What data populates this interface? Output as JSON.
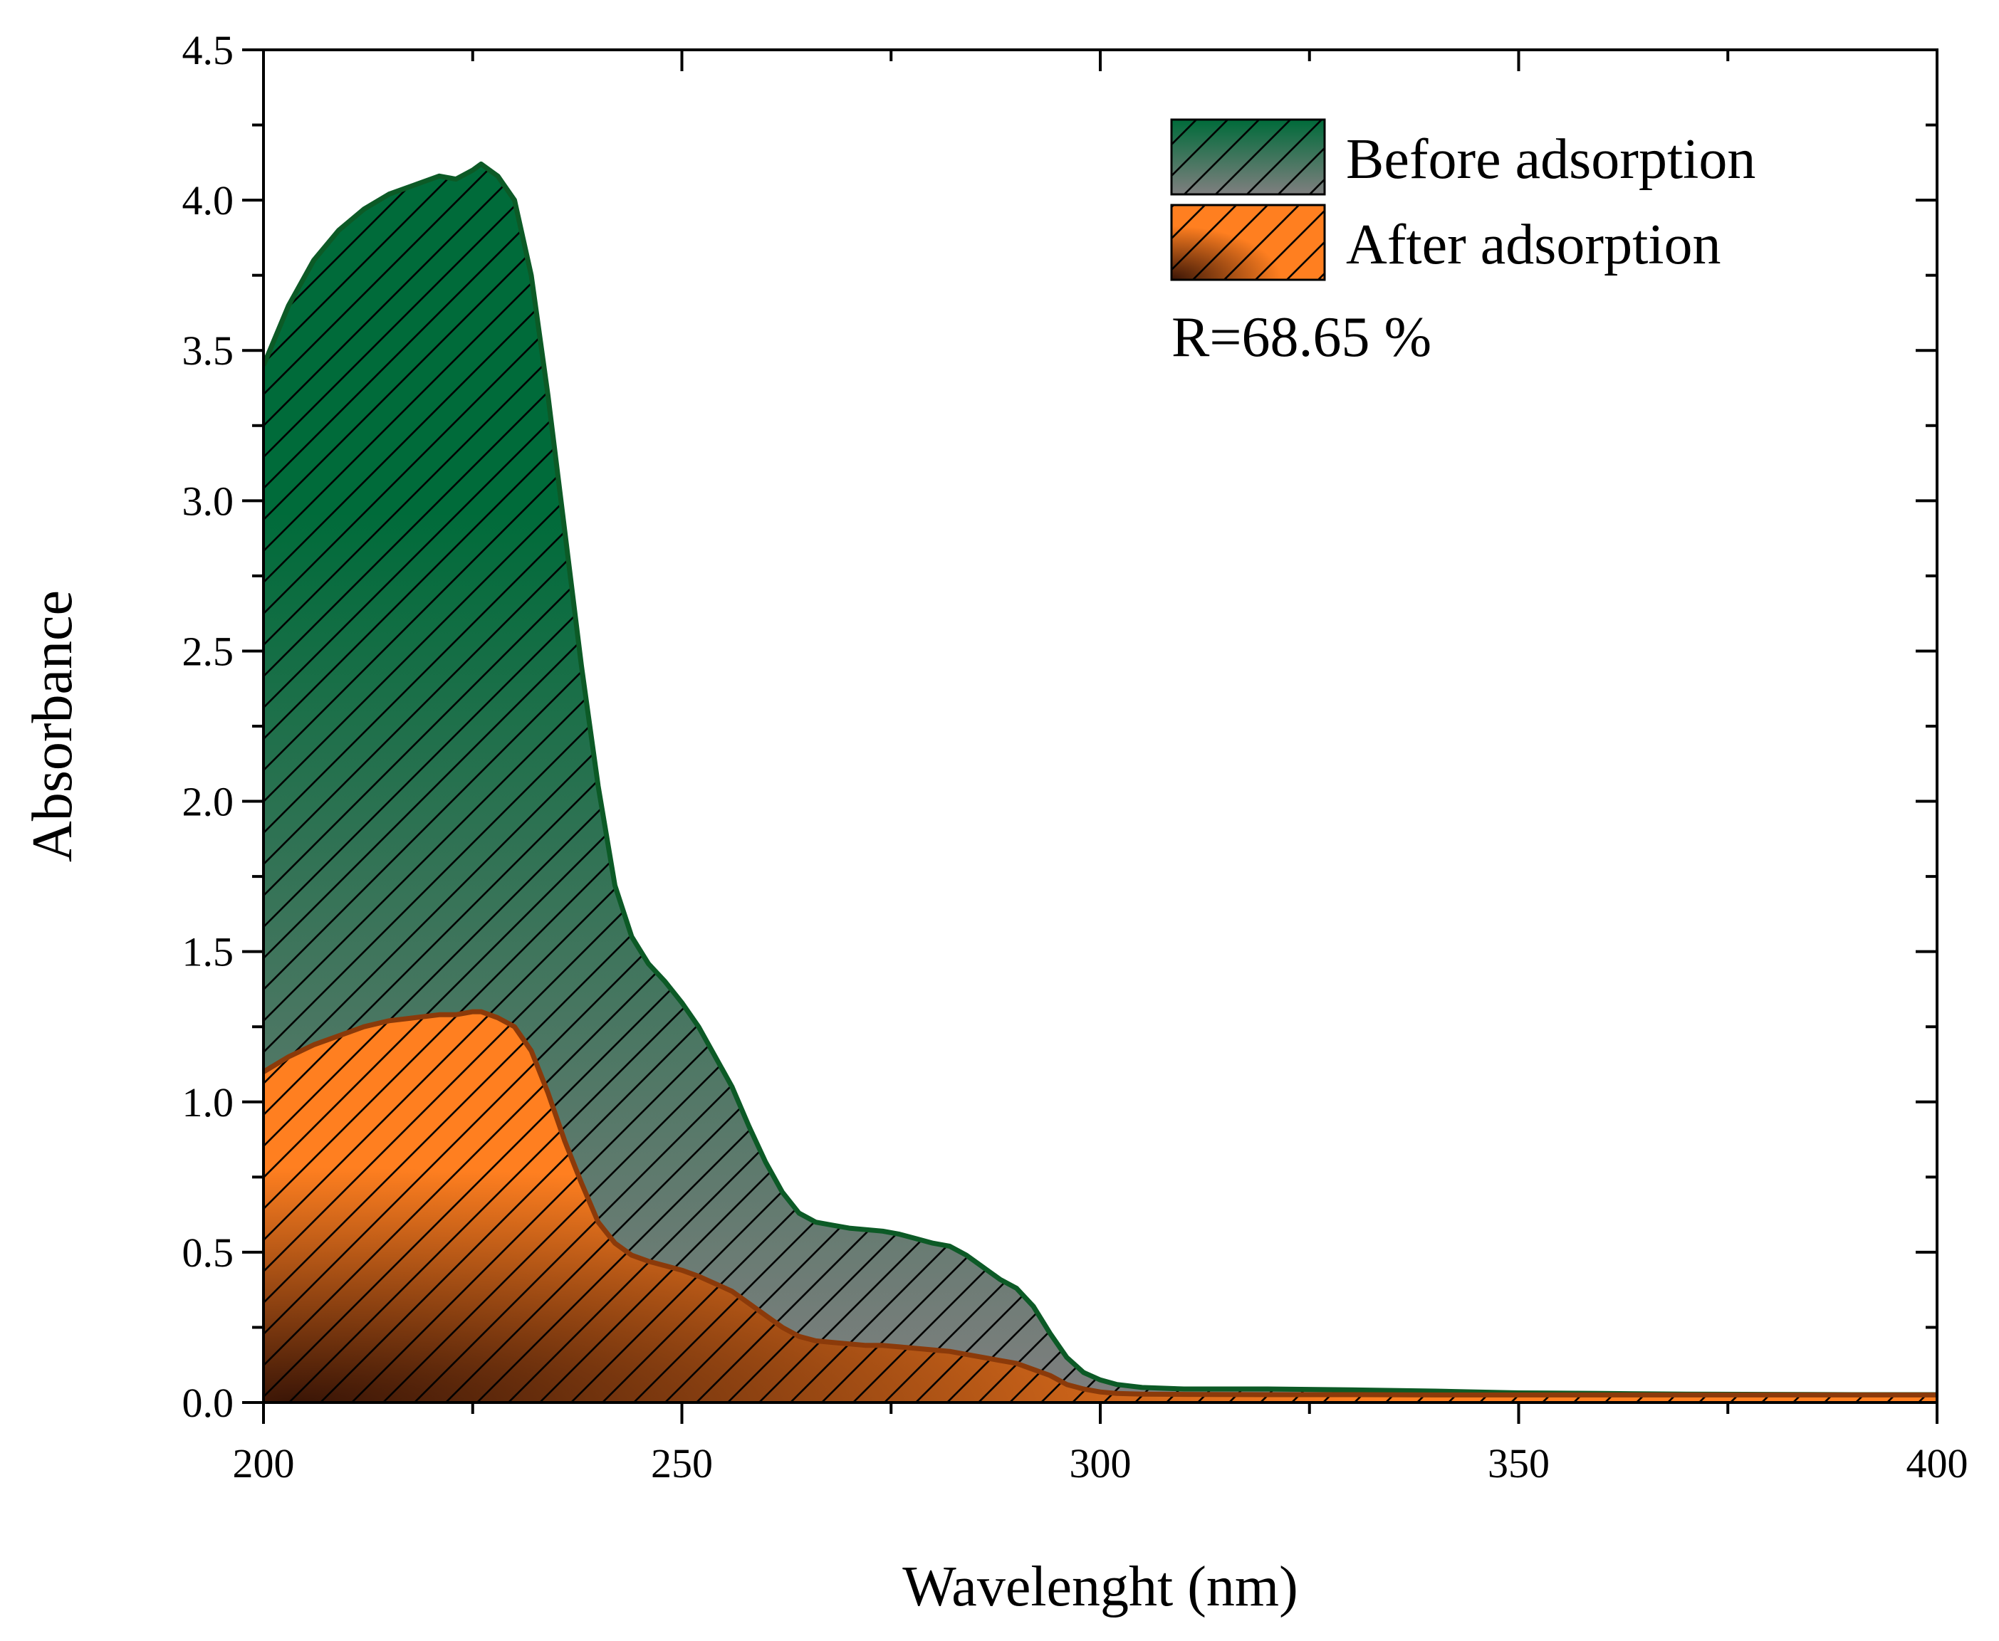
{
  "chart_data": {
    "type": "area",
    "title": "",
    "xlabel": "Wavelenght (nm)",
    "ylabel": "Absorbance",
    "xlim": [
      200,
      400
    ],
    "ylim": [
      0,
      4.5
    ],
    "xticks": [
      200,
      250,
      300,
      350,
      400
    ],
    "xtick_labels": [
      "200",
      "250",
      "300",
      "350",
      "400"
    ],
    "yticks": [
      0,
      0.5,
      1.0,
      1.5,
      2.0,
      2.5,
      3.0,
      3.5,
      4.0,
      4.5
    ],
    "ytick_labels": [
      "0.0",
      "0.5",
      "1.0",
      "1.5",
      "2.0",
      "2.5",
      "3.0",
      "3.5",
      "4.0",
      "4.5"
    ],
    "legend_position": "top-right",
    "annotation": "R=68.65 %",
    "series": [
      {
        "name": "Before adsorption",
        "line_color": "#0c5a26",
        "fill_top": "#006b3a",
        "fill_bottom": "#7f7f7f",
        "x": [
          200,
          203,
          206,
          209,
          212,
          215,
          218,
          221,
          223,
          225,
          226,
          228,
          230,
          232,
          234,
          236,
          238,
          240,
          242,
          244,
          246,
          248,
          250,
          252,
          254,
          256,
          258,
          260,
          262,
          264,
          266,
          268,
          270,
          272,
          274,
          276,
          278,
          280,
          282,
          284,
          286,
          288,
          290,
          292,
          294,
          296,
          298,
          300,
          302,
          305,
          310,
          320,
          330,
          340,
          350,
          360,
          370,
          380,
          390,
          400
        ],
        "y": [
          3.45,
          3.65,
          3.8,
          3.9,
          3.97,
          4.02,
          4.05,
          4.08,
          4.07,
          4.1,
          4.12,
          4.08,
          4.0,
          3.75,
          3.35,
          2.9,
          2.45,
          2.05,
          1.72,
          1.55,
          1.46,
          1.4,
          1.33,
          1.25,
          1.15,
          1.05,
          0.92,
          0.8,
          0.7,
          0.63,
          0.6,
          0.59,
          0.58,
          0.575,
          0.57,
          0.56,
          0.545,
          0.53,
          0.52,
          0.49,
          0.45,
          0.41,
          0.38,
          0.32,
          0.23,
          0.15,
          0.1,
          0.075,
          0.06,
          0.05,
          0.045,
          0.045,
          0.042,
          0.038,
          0.032,
          0.03,
          0.028,
          0.027,
          0.026,
          0.026
        ]
      },
      {
        "name": "After adsorption",
        "line_color": "#8b3a0a",
        "fill_top": "#ff7f20",
        "fill_bottom": "#3a1506",
        "x": [
          200,
          203,
          206,
          209,
          212,
          215,
          218,
          221,
          223,
          225,
          226,
          228,
          230,
          232,
          234,
          236,
          238,
          240,
          242,
          244,
          246,
          248,
          250,
          252,
          254,
          256,
          258,
          260,
          262,
          264,
          266,
          268,
          270,
          272,
          274,
          276,
          278,
          280,
          282,
          284,
          286,
          288,
          290,
          292,
          294,
          296,
          298,
          300,
          302,
          305,
          310,
          320,
          330,
          340,
          350,
          360,
          370,
          380,
          390,
          400
        ],
        "y": [
          1.1,
          1.15,
          1.19,
          1.22,
          1.25,
          1.27,
          1.28,
          1.29,
          1.29,
          1.3,
          1.3,
          1.28,
          1.25,
          1.17,
          1.03,
          0.87,
          0.73,
          0.6,
          0.53,
          0.49,
          0.47,
          0.455,
          0.44,
          0.42,
          0.395,
          0.37,
          0.33,
          0.29,
          0.25,
          0.22,
          0.205,
          0.2,
          0.195,
          0.19,
          0.19,
          0.185,
          0.18,
          0.175,
          0.17,
          0.16,
          0.15,
          0.14,
          0.13,
          0.11,
          0.09,
          0.06,
          0.045,
          0.035,
          0.03,
          0.028,
          0.027,
          0.026,
          0.026,
          0.025,
          0.025,
          0.025,
          0.025,
          0.025,
          0.025,
          0.025
        ]
      }
    ]
  }
}
